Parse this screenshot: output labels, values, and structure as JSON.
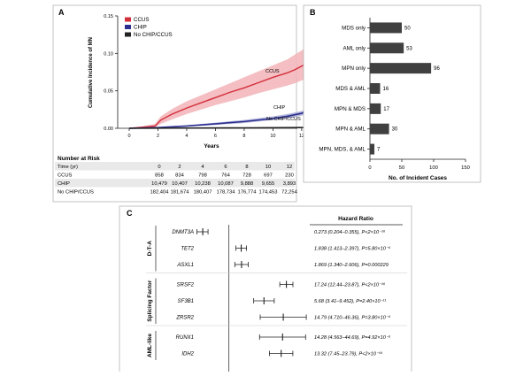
{
  "chart_data": [
    {
      "panel": "A",
      "type": "line",
      "ylabel": "Cumulative Incidence of MN",
      "xlabel": "Years",
      "ylim": [
        0,
        0.15
      ],
      "xlim": [
        0,
        12.5
      ],
      "yticks": [
        "0.00",
        "0.05",
        "0.10",
        "0.15"
      ],
      "xticks": [
        "0",
        "2",
        "4",
        "6",
        "8",
        "10",
        "12"
      ],
      "legend": [
        "CCUS",
        "CHIP",
        "No CHIP/CCUS"
      ],
      "series": [
        {
          "name": "CCUS",
          "label": "CCUS",
          "color": "#d42e3a",
          "band": "#f2b3b7",
          "x": [
            0,
            1,
            1.8,
            2.2,
            3,
            4,
            5,
            6,
            7,
            8,
            9,
            10,
            11,
            11.5,
            12,
            12.3
          ],
          "y": [
            0,
            0.0015,
            0.003,
            0.011,
            0.019,
            0.027,
            0.034,
            0.041,
            0.048,
            0.054,
            0.061,
            0.068,
            0.074,
            0.078,
            0.083,
            0.086
          ],
          "lower": [
            0,
            0.0005,
            0.001,
            0.006,
            0.012,
            0.019,
            0.025,
            0.031,
            0.036,
            0.041,
            0.047,
            0.052,
            0.057,
            0.06,
            0.064,
            0.066
          ],
          "upper": [
            0,
            0.003,
            0.006,
            0.016,
            0.026,
            0.036,
            0.044,
            0.052,
            0.06,
            0.068,
            0.076,
            0.084,
            0.092,
            0.098,
            0.104,
            0.108
          ]
        },
        {
          "name": "CHIP",
          "label": "CHIP",
          "color": "#2a2f8f",
          "band": "#a9acd6",
          "x": [
            0,
            2,
            4,
            6,
            8,
            10,
            11,
            12,
            12.3
          ],
          "y": [
            0,
            0.001,
            0.003,
            0.006,
            0.009,
            0.013,
            0.016,
            0.02,
            0.022
          ],
          "lower": [
            0,
            0.0006,
            0.002,
            0.0045,
            0.007,
            0.011,
            0.013,
            0.017,
            0.018
          ],
          "upper": [
            0,
            0.0015,
            0.004,
            0.0075,
            0.011,
            0.016,
            0.019,
            0.023,
            0.026
          ]
        },
        {
          "name": "No CHIP/CCUS",
          "label": "No CHIP/CCUS",
          "color": "#222222",
          "band": "#999999",
          "x": [
            0,
            4,
            8,
            12,
            12.3
          ],
          "y": [
            0,
            0.0003,
            0.0006,
            0.001,
            0.0011
          ],
          "lower": [
            0,
            0.0002,
            0.0004,
            0.0008,
            0.0009
          ],
          "upper": [
            0,
            0.0004,
            0.0008,
            0.0012,
            0.0013
          ]
        }
      ],
      "risk_table": {
        "title": "Number at Risk",
        "header": [
          "Time (yr)",
          "0",
          "2",
          "4",
          "6",
          "8",
          "10",
          "12"
        ],
        "rows": [
          [
            "CCUS",
            "858",
            "834",
            "798",
            "764",
            "728",
            "697",
            "230"
          ],
          [
            "CHIP",
            "10,479",
            "10,407",
            "10,238",
            "10,087",
            "9,888",
            "9,655",
            "3,893"
          ],
          [
            "No CHIP/CCUS",
            "182,404",
            "181,674",
            "180,407",
            "178,734",
            "176,774",
            "174,453",
            "72,254"
          ]
        ]
      }
    },
    {
      "panel": "B",
      "type": "bar",
      "orientation": "horizontal",
      "xlabel": "No. of Incident Cases",
      "xlim": [
        0,
        150
      ],
      "xticks": [
        "0",
        "50",
        "100",
        "150"
      ],
      "categories": [
        "MDS only",
        "AML only",
        "MPN only",
        "MDS & AML",
        "MPN & MDS",
        "MPN & AML",
        "MPN, MDS, & AML"
      ],
      "values": [
        50,
        53,
        96,
        16,
        17,
        30,
        7
      ],
      "color": "#404040"
    },
    {
      "panel": "C",
      "type": "forest",
      "column_header": "Hazard Ratio",
      "log_scale_range": [
        0.2,
        60
      ],
      "reference": 1,
      "groups": [
        {
          "label": "D-T-A",
          "items": [
            {
              "gene": "DNMT3A",
              "hr": 0.273,
              "lo": 0.204,
              "hi": 0.355,
              "text": "0.273 (0.204–0.355), P<2×10⁻¹⁶"
            },
            {
              "gene": "TET2",
              "hr": 1.838,
              "lo": 1.413,
              "hi": 2.397,
              "text": "1.838 (1.413–2.397), P=5.80×10⁻⁶"
            },
            {
              "gene": "ASXL1",
              "hr": 1.869,
              "lo": 1.34,
              "hi": 2.606,
              "text": "1.869 (1.340–2.606), P=0.000229"
            }
          ]
        },
        {
          "label": "Splicing Factor",
          "items": [
            {
              "gene": "SRSF2",
              "hr": 17.24,
              "lo": 12.44,
              "hi": 23.87,
              "text": "17.24 (12.44–23.87), P<2×10⁻¹⁶"
            },
            {
              "gene": "SF3B1",
              "hr": 5.68,
              "lo": 3.41,
              "hi": 9.452,
              "text": "5.68 (3.41–9.452), P=2.40×10⁻¹¹"
            },
            {
              "gene": "ZRSR2",
              "hr": 14.79,
              "lo": 4.71,
              "hi": 46.36,
              "text": "14.79 (4.710–46.36), P=3.80×10⁻⁶"
            }
          ]
        },
        {
          "label": "AML-like",
          "items": [
            {
              "gene": "RUNX1",
              "hr": 14.28,
              "lo": 4.563,
              "hi": 44.69,
              "text": "14.28 (4.563–44.69), P=4.92×10⁻⁶"
            },
            {
              "gene": "IDH2",
              "hr": 13.32,
              "lo": 7.45,
              "hi": 23.79,
              "text": "13.32 (7.45–23.79), P<2×10⁻¹⁶"
            }
          ]
        }
      ]
    }
  ]
}
